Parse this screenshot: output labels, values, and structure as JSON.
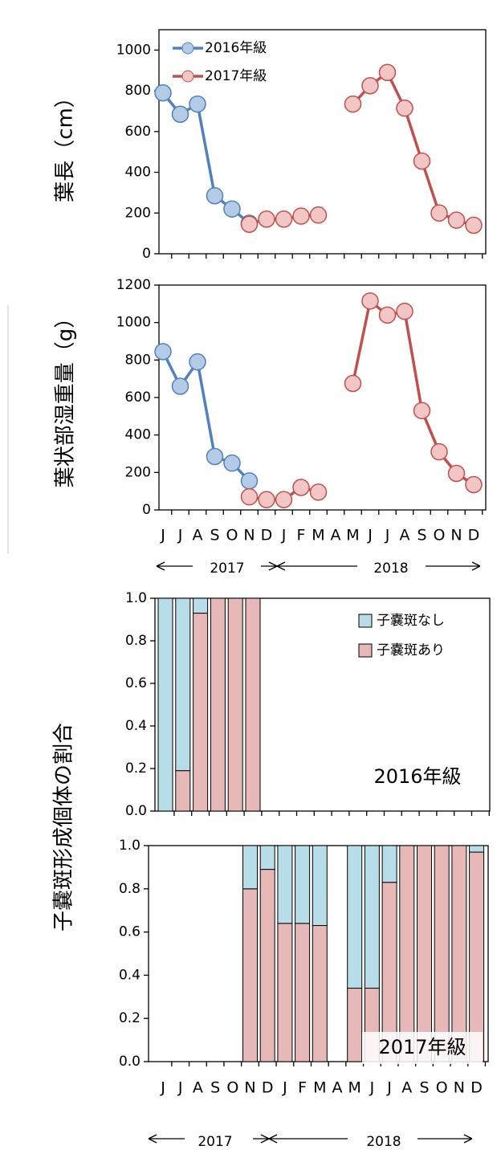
{
  "chart_data": [
    {
      "type": "line",
      "ylabel": "葉長（cm）",
      "categories": [
        null,
        null,
        null,
        null,
        null,
        null,
        null,
        null,
        null,
        null,
        null,
        null,
        null,
        null,
        null,
        null,
        null,
        null,
        null
      ],
      "series": [
        {
          "name": "2016年級",
          "color": "#4f81bd",
          "fill": "#b4cbe6",
          "values": [
            790,
            685,
            735,
            285,
            220,
            150,
            null,
            null,
            null,
            null,
            null,
            null,
            null,
            null,
            null,
            null,
            null,
            null,
            null
          ]
        },
        {
          "name": "2017年級",
          "color": "#c0504d",
          "fill": "#f2c6c5",
          "values": [
            null,
            null,
            null,
            null,
            null,
            145,
            170,
            170,
            185,
            190,
            null,
            735,
            825,
            890,
            715,
            455,
            200,
            165,
            140
          ]
        }
      ],
      "ylim": [
        0,
        1100
      ],
      "yticks": [
        0,
        200,
        400,
        600,
        800,
        1000
      ]
    },
    {
      "type": "line",
      "ylabel": "葉状部湿重量（g）",
      "categories": [
        "J",
        "J",
        "A",
        "S",
        "O",
        "N",
        "D",
        "J",
        "F",
        "M",
        "A",
        "M",
        "J",
        "J",
        "A",
        "S",
        "O",
        "N",
        "D"
      ],
      "series": [
        {
          "color": "#4f81bd",
          "fill": "#b4cbe6",
          "values": [
            845,
            660,
            790,
            285,
            250,
            155,
            null,
            null,
            null,
            null,
            null,
            null,
            null,
            null,
            null,
            null,
            null,
            null,
            null
          ]
        },
        {
          "color": "#c0504d",
          "fill": "#f2c6c5",
          "values": [
            null,
            null,
            null,
            null,
            null,
            70,
            55,
            55,
            120,
            95,
            null,
            675,
            1115,
            1040,
            1060,
            530,
            310,
            195,
            135
          ]
        }
      ],
      "ylim": [
        0,
        1200
      ],
      "yticks": [
        0,
        200,
        400,
        600,
        800,
        1000,
        1200
      ],
      "period_labels": [
        "2017",
        "2018"
      ]
    },
    {
      "type": "bar",
      "stacked": true,
      "ylabel": "子嚢斑形成個体の割合",
      "annotation": "2016年級",
      "categories": [
        null,
        null,
        null,
        null,
        null,
        null,
        null,
        null,
        null,
        null,
        null,
        null,
        null,
        null,
        null,
        null,
        null,
        null,
        null
      ],
      "series": [
        {
          "name": "子嚢斑あり",
          "color": "#e6b9b8",
          "values": [
            0,
            0.19,
            0.93,
            1,
            1,
            1,
            null,
            null,
            null,
            null,
            null,
            null,
            null,
            null,
            null,
            null,
            null,
            null,
            null
          ]
        },
        {
          "name": "子嚢斑なし",
          "color": "#b7dde8",
          "values": [
            1,
            0.81,
            0.07,
            0,
            0,
            0,
            null,
            null,
            null,
            null,
            null,
            null,
            null,
            null,
            null,
            null,
            null,
            null,
            null
          ]
        }
      ],
      "ylim": [
        0,
        1
      ],
      "yticks": [
        {
          "value": 0,
          "label": "0.0"
        },
        {
          "value": 0.2,
          "label": "0.2"
        },
        {
          "value": 0.4,
          "label": "0.4"
        },
        {
          "value": 0.6,
          "label": "0.6"
        },
        {
          "value": 0.8,
          "label": "0.8"
        },
        {
          "value": 1,
          "label": "1.0"
        }
      ]
    },
    {
      "type": "bar",
      "stacked": true,
      "annotation": "2017年級",
      "categories": [
        "J",
        "J",
        "A",
        "S",
        "O",
        "N",
        "D",
        "J",
        "F",
        "M",
        "A",
        "M",
        "J",
        "J",
        "A",
        "S",
        "O",
        "N",
        "D"
      ],
      "series": [
        {
          "color": "#e6b9b8",
          "values": [
            null,
            null,
            null,
            null,
            null,
            0.8,
            0.89,
            0.64,
            0.64,
            0.63,
            null,
            0.34,
            0.34,
            0.83,
            1,
            1,
            1,
            1,
            0.97
          ]
        },
        {
          "color": "#b7dde8",
          "values": [
            null,
            null,
            null,
            null,
            null,
            0.2,
            0.11,
            0.36,
            0.36,
            0.37,
            null,
            0.66,
            0.66,
            0.17,
            0,
            0,
            0,
            0,
            0.03
          ]
        }
      ],
      "ylim": [
        0,
        1
      ],
      "yticks": [
        {
          "value": 0,
          "label": "0.0"
        },
        {
          "value": 0.2,
          "label": "0.2"
        },
        {
          "value": 0.4,
          "label": "0.4"
        },
        {
          "value": 0.6,
          "label": "0.6"
        },
        {
          "value": 0.8,
          "label": "0.8"
        },
        {
          "value": 1,
          "label": "1.0"
        }
      ],
      "period_labels": [
        "2017",
        "2018"
      ]
    }
  ]
}
